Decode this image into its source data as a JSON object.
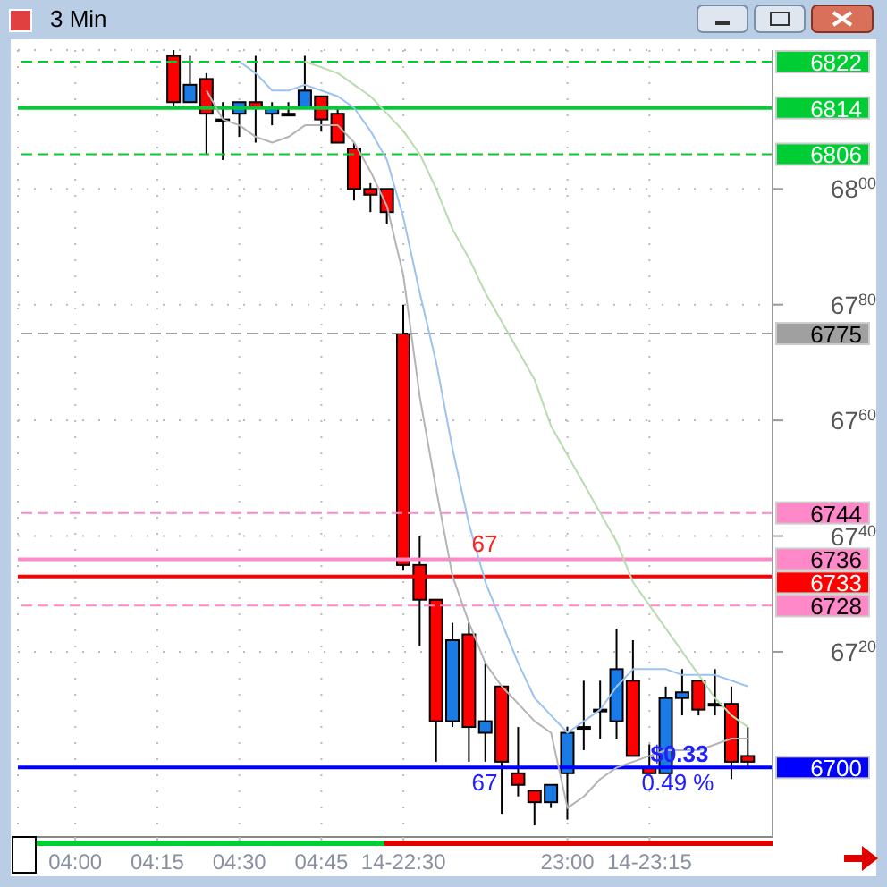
{
  "chart_data": {
    "type": "candlestick",
    "title": "3 Min",
    "categories": [
      null,
      null,
      null,
      "04:00",
      null,
      null,
      null,
      null,
      "04:15",
      null,
      null,
      null,
      null,
      "04:30",
      null,
      null,
      null,
      null,
      "04:45",
      null,
      null,
      null,
      null,
      "14-22:30",
      null,
      null,
      null,
      null,
      null,
      null,
      null,
      null,
      null,
      "23:00",
      null,
      null,
      null,
      null,
      "14-23:15",
      null,
      null,
      null,
      null,
      null,
      null,
      null
    ],
    "ohlc": [
      null,
      null,
      null,
      null,
      null,
      null,
      null,
      null,
      null,
      [
        6823,
        6824,
        6814,
        6815
      ],
      [
        6815,
        6823,
        6815,
        6818
      ],
      [
        6819,
        6820,
        6806,
        6813
      ],
      [
        6812,
        6815,
        6805,
        6812
      ],
      [
        6813,
        6815,
        6809,
        6815
      ],
      [
        6815,
        6823,
        6808,
        6814
      ],
      [
        6813,
        6815,
        6811,
        6814
      ],
      [
        6813,
        6815,
        6813,
        6813
      ],
      [
        6814,
        6823,
        6814,
        6817
      ],
      [
        6816,
        6816,
        6810,
        6812
      ],
      [
        6813,
        6814,
        6808,
        6808
      ],
      [
        6807,
        6808,
        6798,
        6800
      ],
      [
        6800,
        6801,
        6796,
        6799
      ],
      [
        6800,
        6800,
        6794,
        6796
      ],
      [
        6775,
        6780,
        6734,
        6735
      ],
      [
        6735,
        6740,
        6721,
        6729
      ],
      [
        6729,
        6729,
        6701,
        6708
      ],
      [
        6708,
        6725,
        6707,
        6722
      ],
      [
        6723,
        6725,
        6701,
        6707
      ],
      [
        6706,
        6718,
        6701,
        6708
      ],
      [
        6714,
        6714,
        6692,
        6701
      ],
      [
        6699,
        6707,
        6695,
        6697
      ],
      [
        6696,
        6696,
        6690,
        6694
      ],
      [
        6694,
        6697,
        6693,
        6697
      ],
      [
        6699,
        6707,
        6691,
        6706
      ],
      [
        6707,
        6715,
        6703,
        6707
      ],
      [
        6710,
        6715,
        6705,
        6710
      ],
      [
        6708,
        6724,
        6705,
        6717
      ],
      [
        6715,
        6722,
        6702,
        6702
      ],
      [
        6700,
        6704,
        6699,
        6699
      ],
      [
        6699,
        6714,
        6699,
        6712
      ],
      [
        6712,
        6717,
        6709,
        6713
      ],
      [
        6715,
        6715,
        6709,
        6710
      ],
      [
        6711,
        6717,
        6709,
        6711
      ],
      [
        6711,
        6714,
        6698,
        6701
      ],
      [
        6702,
        6707,
        6700,
        6701
      ],
      null
    ],
    "colors": [
      null,
      null,
      null,
      null,
      null,
      null,
      null,
      null,
      null,
      "#ff0000",
      "#1a7be6",
      "#ff0000",
      "#000000",
      "#1a7be6",
      "#ff0000",
      "#1a7be6",
      "#000000",
      "#1a7be6",
      "#ff0000",
      "#ff0000",
      "#ff0000",
      "#ff0000",
      "#ff0000",
      "#ff0000",
      "#ff0000",
      "#ff0000",
      "#1a7be6",
      "#ff0000",
      "#1a7be6",
      "#ff0000",
      "#ff0000",
      "#ff0000",
      "#1a7be6",
      "#1a7be6",
      "#000000",
      "#000000",
      "#1a7be6",
      "#ff0000",
      "#ff0000",
      "#1a7be6",
      "#1a7be6",
      "#ff0000",
      "#000000",
      "#ff0000",
      "#ff0000",
      null
    ],
    "series": [
      {
        "type": "line",
        "color": "#b4b4b4",
        "values": [
          null,
          null,
          null,
          null,
          null,
          null,
          null,
          null,
          null,
          null,
          null,
          6817,
          6812,
          6811,
          6809,
          6808,
          6809,
          6811,
          6811,
          6811,
          6808,
          6803,
          6797,
          6785,
          6764,
          6748,
          6733,
          6725,
          6718,
          6714,
          6711,
          6708,
          6706,
          6693,
          6695,
          6698,
          6700,
          6701,
          6702,
          6703,
          6703,
          6703,
          6704,
          6705,
          6705,
          null
        ]
      },
      {
        "type": "line",
        "color": "#9cc3f0",
        "values": [
          null,
          null,
          null,
          null,
          null,
          null,
          null,
          null,
          null,
          null,
          null,
          null,
          null,
          6822,
          6820,
          6817,
          6817,
          6818,
          6817,
          6816,
          6814,
          6810,
          6805,
          6795,
          6782,
          6770,
          6755,
          6742,
          6732,
          6725,
          6718,
          6712,
          6709,
          6706,
          6708,
          6710,
          6714,
          6717,
          6717,
          6717,
          6716,
          6716,
          6716,
          6715,
          6714,
          null
        ]
      },
      {
        "type": "line",
        "color": "#b8dcb0",
        "values": [
          null,
          null,
          null,
          null,
          null,
          null,
          null,
          null,
          null,
          null,
          null,
          null,
          null,
          null,
          null,
          null,
          null,
          6822,
          6821,
          6820,
          6818,
          6816,
          6813,
          6810,
          6806,
          6800,
          6793,
          6788,
          6782,
          6777,
          6772,
          6767,
          6759,
          6754,
          6749,
          6744,
          6739,
          6732,
          6728,
          6724,
          6720,
          6716,
          6712,
          6709,
          6707,
          null
        ]
      }
    ],
    "ylim": [
      6688,
      6824
    ],
    "yticks": [
      6800,
      6780,
      6760,
      6740,
      6720
    ],
    "grid": true,
    "ref_lines": [
      {
        "axis": "y",
        "value": 6822,
        "label": "6822",
        "color": "#00cc33",
        "line_style": "dashed"
      },
      {
        "axis": "y",
        "value": 6814,
        "label": "6814",
        "color": "#00cc33",
        "line_style": "solid"
      },
      {
        "axis": "y",
        "value": 6806,
        "label": "6806",
        "color": "#00cc33",
        "line_style": "dashed"
      },
      {
        "axis": "y",
        "value": 6775,
        "label": "6775",
        "color": "#a0a0a0",
        "line_style": "dashed"
      },
      {
        "axis": "y",
        "value": 6744,
        "label": "6744",
        "color": "#ff88c8",
        "line_style": "dashed"
      },
      {
        "axis": "y",
        "value": 6736,
        "label": "6736",
        "color": "#ff88c8",
        "line_style": "solid"
      },
      {
        "axis": "y",
        "value": 6733,
        "label": "6733",
        "color": "#ff0000",
        "line_style": "solid"
      },
      {
        "axis": "y",
        "value": 6728,
        "label": "6728",
        "color": "#ff88c8",
        "line_style": "dashed"
      },
      {
        "axis": "y",
        "value": 6700,
        "label": "6700",
        "color": "#0000ff",
        "line_style": "solid"
      }
    ],
    "annotations": [
      {
        "text": "67",
        "y": 6736
      },
      {
        "text": "67",
        "y": 6700
      },
      {
        "text": "$0.33",
        "y": 6700
      },
      {
        "text": "0.49 %",
        "y": 6700
      }
    ]
  }
}
